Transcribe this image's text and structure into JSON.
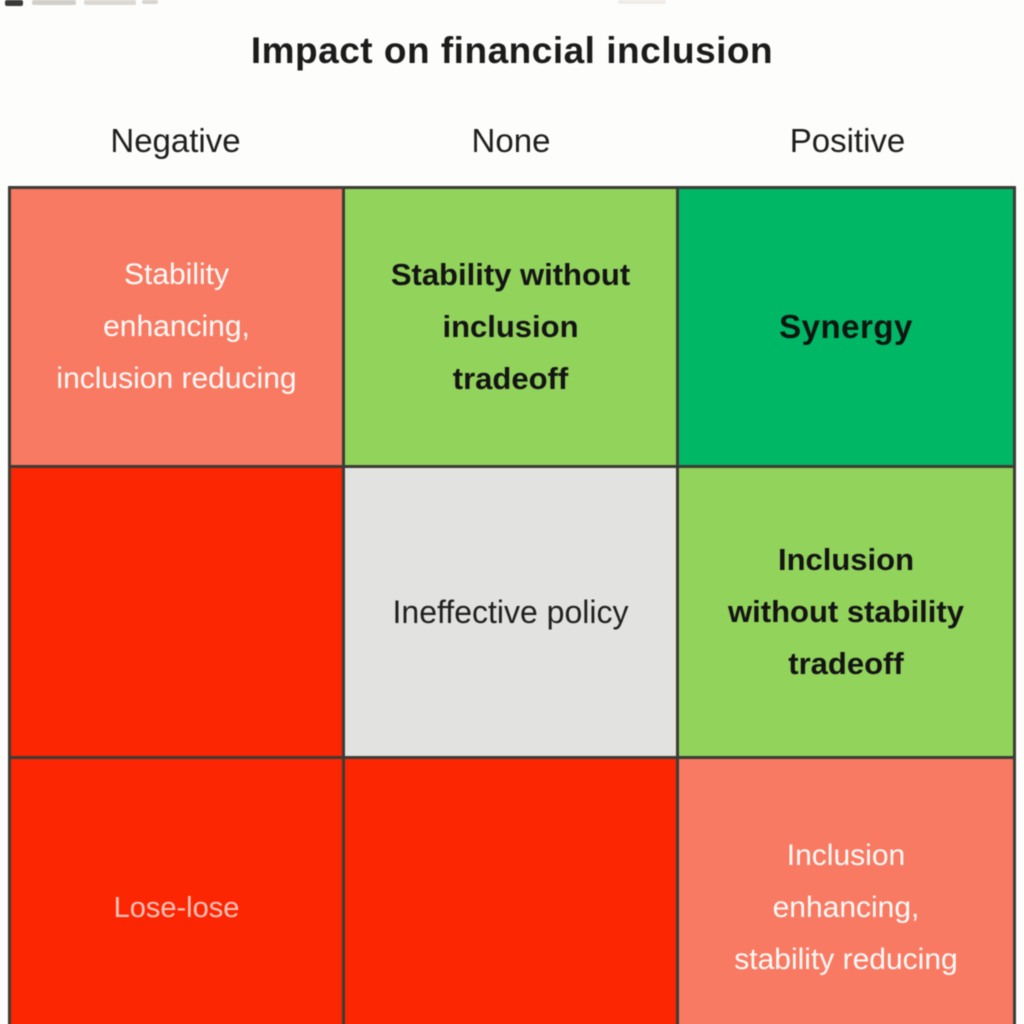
{
  "title": "Impact on financial inclusion",
  "columns": [
    {
      "label": "Negative"
    },
    {
      "label": "None"
    },
    {
      "label": "Positive"
    }
  ],
  "palette": {
    "salmon": "#F87A62",
    "light_green": "#92D35C",
    "green": "#00B766",
    "red": "#FC2603",
    "gray": "#E2E2E0",
    "grid_line": "#3C3C36"
  },
  "cells": {
    "r1c1": {
      "text": "Stability\nenhancing,\ninclusion reducing",
      "color": "#F87A62"
    },
    "r1c2": {
      "text": "Stability without\ninclusion\ntradeoff",
      "color": "#92D35C"
    },
    "r1c3": {
      "text": "Synergy",
      "color": "#00B766"
    },
    "r2c1": {
      "text": "",
      "color": "#FC2603"
    },
    "r2c2": {
      "text": "Ineffective policy",
      "color": "#E2E2E0"
    },
    "r2c3": {
      "text": "Inclusion\nwithout stability\ntradeoff",
      "color": "#92D35C"
    },
    "r3c1": {
      "text": "Lose-lose",
      "color": "#FC2603"
    },
    "r3c2": {
      "text": "",
      "color": "#FC2603"
    },
    "r3c3": {
      "text": "Inclusion\nenhancing,\nstability reducing",
      "color": "#F87A62"
    }
  }
}
